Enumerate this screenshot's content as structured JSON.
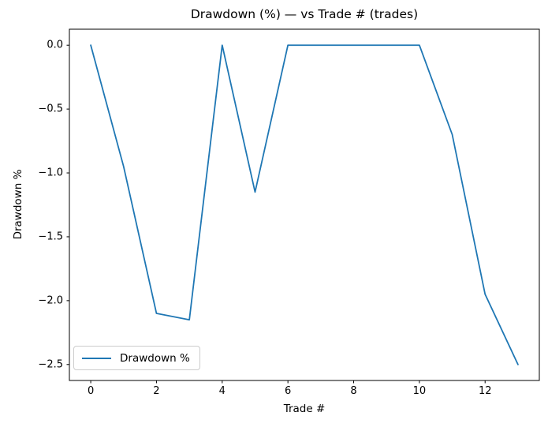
{
  "chart_data": {
    "type": "line",
    "title": "Drawdown (%) — vs Trade # (trades)",
    "xlabel": "Trade #",
    "ylabel": "Drawdown %",
    "x": [
      0,
      1,
      2,
      3,
      4,
      5,
      6,
      7,
      8,
      9,
      10,
      11,
      12,
      13
    ],
    "series": [
      {
        "name": "Drawdown %",
        "color": "#1f77b4",
        "values": [
          0.0,
          -0.95,
          -2.1,
          -2.15,
          0.0,
          -1.15,
          0.0,
          0.0,
          0.0,
          0.0,
          0.0,
          -0.7,
          -1.95,
          -2.5
        ]
      }
    ],
    "xticks": [
      0,
      2,
      4,
      6,
      8,
      10,
      12
    ],
    "yticks": [
      0.0,
      -0.5,
      -1.0,
      -1.5,
      -2.0,
      -2.5
    ],
    "xlim": [
      -0.65,
      13.65
    ],
    "ylim": [
      -2.625,
      0.125
    ],
    "grid": false,
    "legend": {
      "position": "lower left",
      "entries": [
        "Drawdown %"
      ]
    }
  },
  "colors": {
    "line": "#1f77b4",
    "axes": "#000000",
    "background": "#ffffff",
    "legend_border": "#cccccc"
  }
}
